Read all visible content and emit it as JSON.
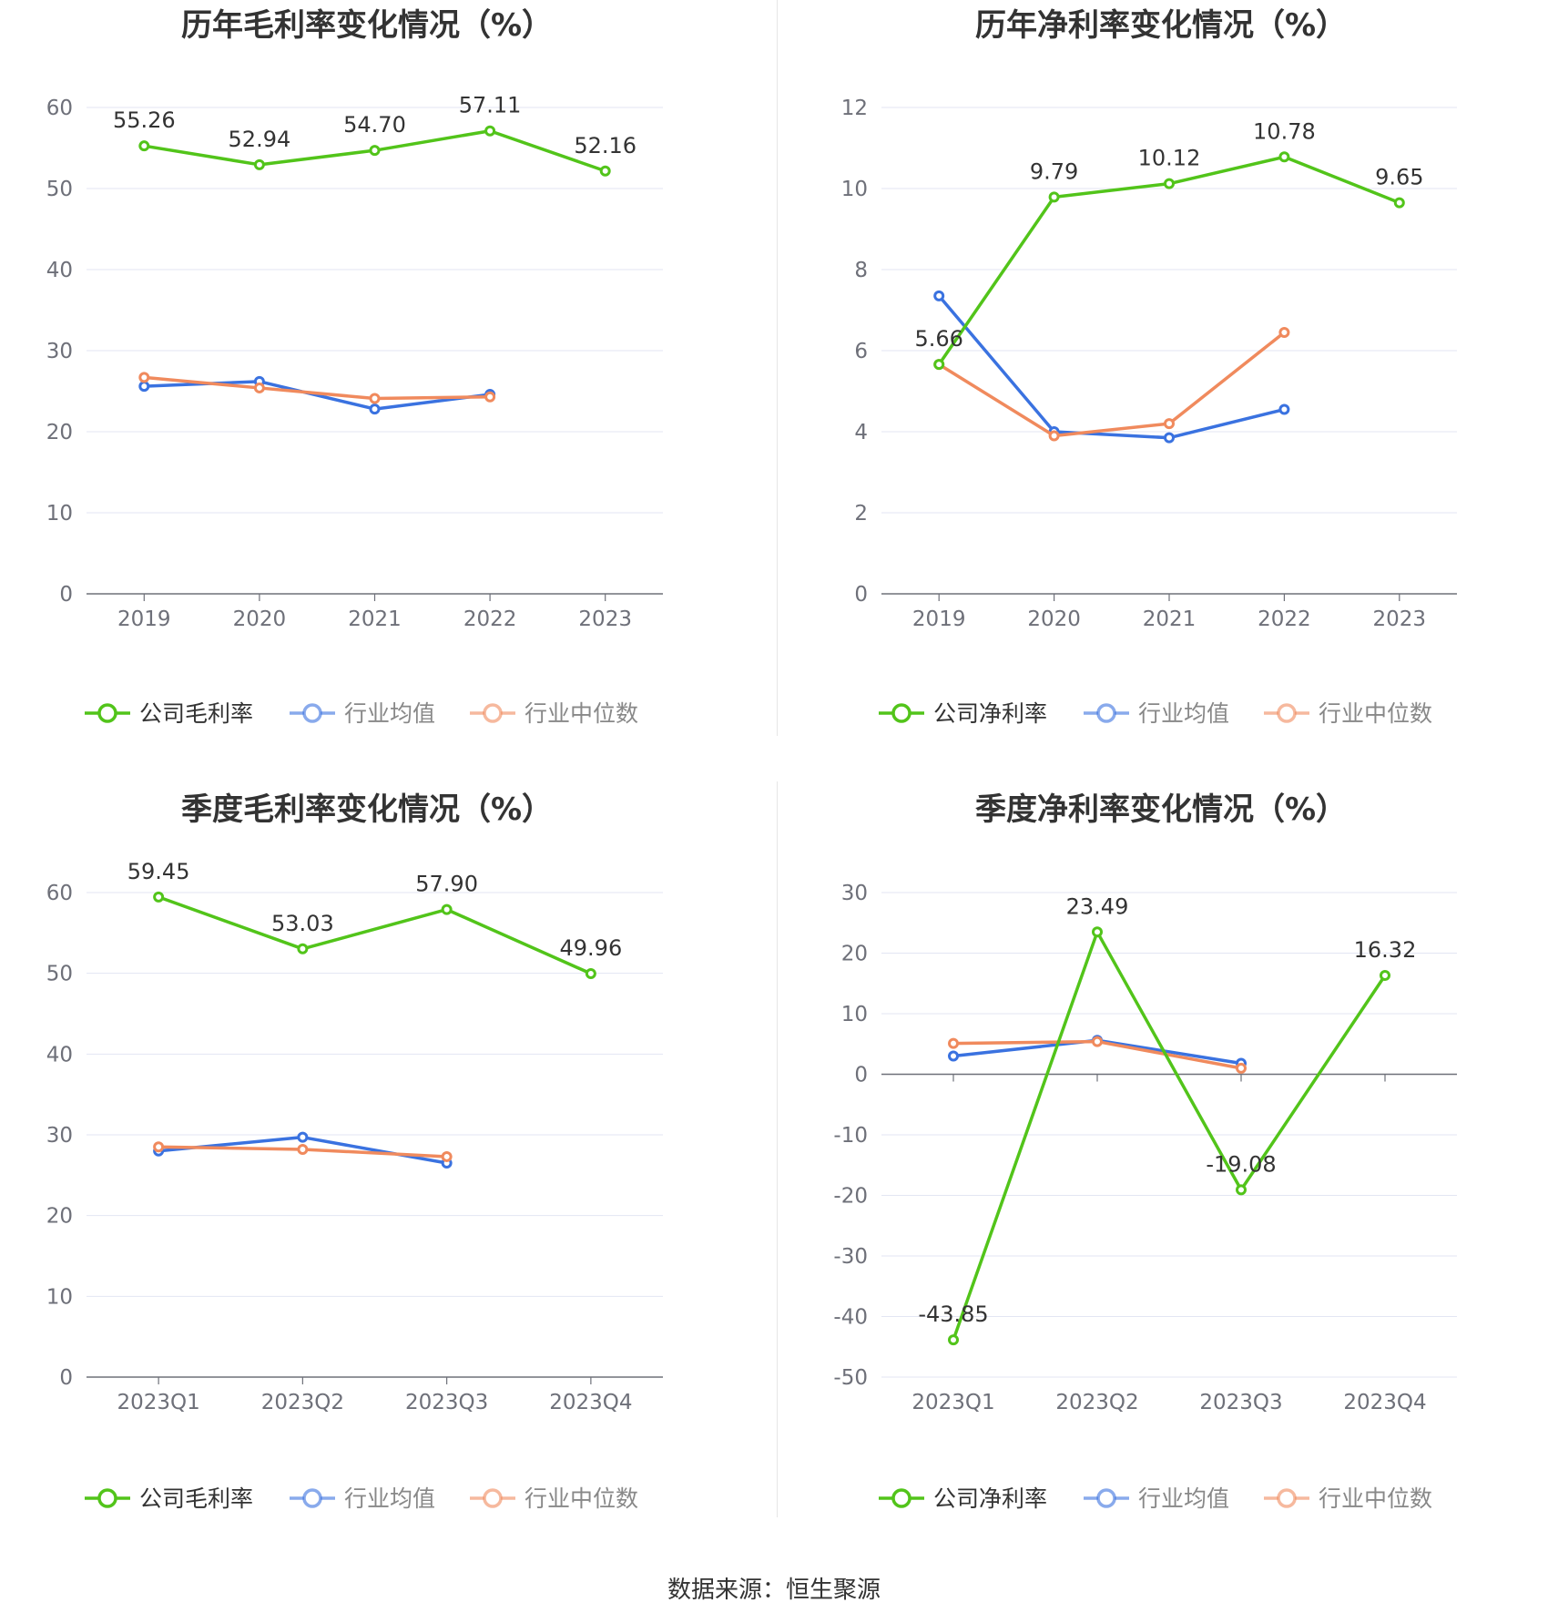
{
  "colors": {
    "company": "#52c41a",
    "industry_avg": "#3a72e0",
    "industry_median": "#f08a5d",
    "grid": "#e3e6f3",
    "axis": "#6e7079",
    "label": "#333333",
    "tick": "#6e7079"
  },
  "footer": "数据来源：恒生聚源",
  "chart_data": [
    {
      "type": "line",
      "title": "历年毛利率变化情况（%）",
      "categories": [
        "2019",
        "2020",
        "2021",
        "2022",
        "2023"
      ],
      "ylim": [
        0,
        60
      ],
      "yticks": [
        0,
        10,
        20,
        30,
        40,
        50,
        60
      ],
      "series": [
        {
          "name": "公司毛利率",
          "key": "company",
          "values": [
            55.26,
            52.94,
            54.7,
            57.11,
            52.16
          ],
          "labels": [
            "55.26",
            "52.94",
            "54.70",
            "57.11",
            "52.16"
          ]
        },
        {
          "name": "行业均值",
          "key": "industry_avg",
          "values": [
            25.6,
            26.2,
            22.8,
            24.6,
            null
          ]
        },
        {
          "name": "行业中位数",
          "key": "industry_median",
          "values": [
            26.7,
            25.4,
            24.1,
            24.3,
            null
          ]
        }
      ]
    },
    {
      "type": "line",
      "title": "历年净利率变化情况（%）",
      "categories": [
        "2019",
        "2020",
        "2021",
        "2022",
        "2023"
      ],
      "ylim": [
        0,
        12
      ],
      "yticks": [
        0,
        2,
        4,
        6,
        8,
        10,
        12
      ],
      "series": [
        {
          "name": "公司净利率",
          "key": "company",
          "values": [
            5.66,
            9.79,
            10.12,
            10.78,
            9.65
          ],
          "labels": [
            "5.66",
            "9.79",
            "10.12",
            "10.78",
            "9.65"
          ]
        },
        {
          "name": "行业均值",
          "key": "industry_avg",
          "values": [
            7.35,
            4.0,
            3.85,
            4.55,
            null
          ]
        },
        {
          "name": "行业中位数",
          "key": "industry_median",
          "values": [
            5.66,
            3.9,
            4.2,
            6.45,
            null
          ]
        }
      ]
    },
    {
      "type": "line",
      "title": "季度毛利率变化情况（%）",
      "categories": [
        "2023Q1",
        "2023Q2",
        "2023Q3",
        "2023Q4"
      ],
      "ylim": [
        0,
        60
      ],
      "yticks": [
        0,
        10,
        20,
        30,
        40,
        50,
        60
      ],
      "series": [
        {
          "name": "公司毛利率",
          "key": "company",
          "values": [
            59.45,
            53.03,
            57.9,
            49.96
          ],
          "labels": [
            "59.45",
            "53.03",
            "57.90",
            "49.96"
          ]
        },
        {
          "name": "行业均值",
          "key": "industry_avg",
          "values": [
            28.0,
            29.7,
            26.5,
            null
          ]
        },
        {
          "name": "行业中位数",
          "key": "industry_median",
          "values": [
            28.5,
            28.2,
            27.3,
            null
          ]
        }
      ]
    },
    {
      "type": "line",
      "title": "季度净利率变化情况（%）",
      "categories": [
        "2023Q1",
        "2023Q2",
        "2023Q3",
        "2023Q4"
      ],
      "ylim": [
        -50,
        30
      ],
      "yticks": [
        -50,
        -40,
        -30,
        -20,
        -10,
        0,
        10,
        20,
        30
      ],
      "series": [
        {
          "name": "公司净利率",
          "key": "company",
          "values": [
            -43.85,
            23.49,
            -19.08,
            16.32
          ],
          "labels": [
            "-43.85",
            "23.49",
            "-19.08",
            "16.32"
          ]
        },
        {
          "name": "行业均值",
          "key": "industry_avg",
          "values": [
            3.0,
            5.6,
            1.8,
            null
          ]
        },
        {
          "name": "行业中位数",
          "key": "industry_median",
          "values": [
            5.1,
            5.4,
            1.0,
            null
          ]
        }
      ]
    }
  ]
}
